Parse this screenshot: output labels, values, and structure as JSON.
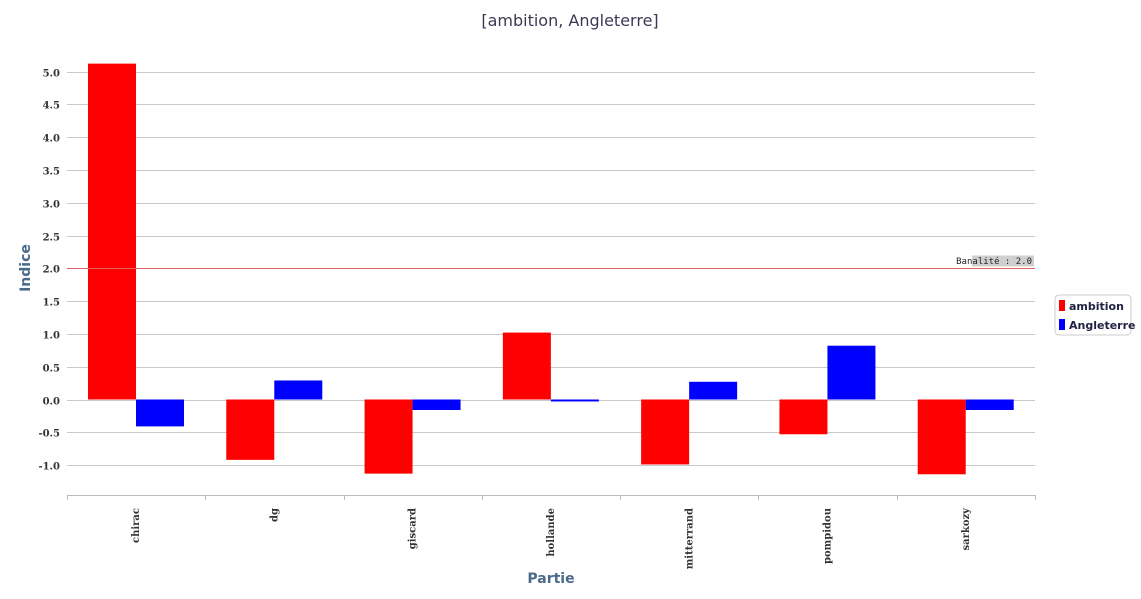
{
  "chart_data": {
    "type": "bar",
    "title": "[ambition, Angleterre]",
    "xlabel": "Partie",
    "ylabel": "Indice",
    "categories": [
      "chirac",
      "dg",
      "giscard",
      "hollande",
      "mitterrand",
      "pompidou",
      "sarkozy"
    ],
    "series": [
      {
        "name": "ambition",
        "color": "#ff0000",
        "values": [
          5.12,
          -0.92,
          -1.13,
          1.02,
          -0.99,
          -0.53,
          -1.14
        ]
      },
      {
        "name": "Angleterre",
        "color": "#0000ff",
        "values": [
          -0.41,
          0.29,
          -0.16,
          -0.03,
          0.27,
          0.82,
          -0.16
        ]
      }
    ],
    "ylim": [
      -1.45,
      5.3
    ],
    "yticks": [
      "5.0",
      "4.5",
      "4.0",
      "3.5",
      "3.0",
      "2.5",
      "2.0",
      "1.5",
      "1.0",
      "0.5",
      "0.0",
      "-0.5",
      "-1.0"
    ],
    "ytick_values": [
      5.0,
      4.5,
      4.0,
      3.5,
      3.0,
      2.5,
      2.0,
      1.5,
      1.0,
      0.5,
      0.0,
      -0.5,
      -1.0
    ],
    "reference_line": {
      "value": 2.0,
      "label": "Banalité : 2.0",
      "color": "#e06060"
    },
    "grid": true,
    "legend_position": "right"
  }
}
